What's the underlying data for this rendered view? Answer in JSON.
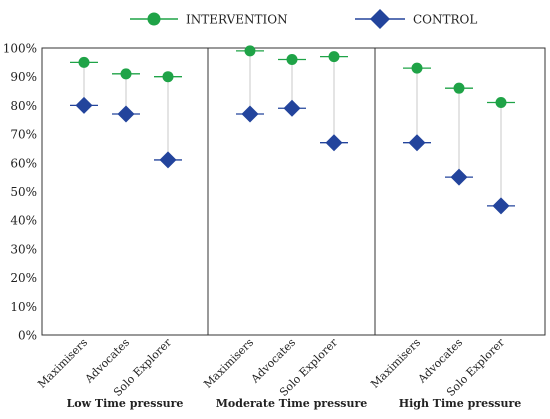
{
  "chart_data": {
    "type": "scatter",
    "subtype": "dumbbell",
    "ylim": [
      0,
      100
    ],
    "yticks": [
      0,
      10,
      20,
      30,
      40,
      50,
      60,
      70,
      80,
      90,
      100
    ],
    "ytick_suffix": "%",
    "legend": {
      "placement": "top-center",
      "entries": [
        {
          "name": "INTERVENTION",
          "marker": "circle",
          "color": "#1fa347"
        },
        {
          "name": "CONTROL",
          "marker": "diamond",
          "color": "#23449c"
        }
      ]
    },
    "panels": [
      {
        "title": "Low Time pressure",
        "categories": [
          "Maximisers",
          "Advocates",
          "Solo Explorer"
        ],
        "series": [
          {
            "name": "INTERVENTION",
            "values": [
              95,
              91,
              90
            ]
          },
          {
            "name": "CONTROL",
            "values": [
              80,
              77,
              61
            ]
          }
        ]
      },
      {
        "title": "Moderate Time pressure",
        "categories": [
          "Maximisers",
          "Advocates",
          "Solo Explorer"
        ],
        "series": [
          {
            "name": "INTERVENTION",
            "values": [
              99,
              96,
              97
            ]
          },
          {
            "name": "CONTROL",
            "values": [
              77,
              79,
              67
            ]
          }
        ]
      },
      {
        "title": "High Time pressure",
        "categories": [
          "Maximisers",
          "Advocates",
          "Solo Explorer"
        ],
        "series": [
          {
            "name": "INTERVENTION",
            "values": [
              93,
              86,
              81
            ]
          },
          {
            "name": "CONTROL",
            "values": [
              67,
              55,
              45
            ]
          }
        ]
      }
    ],
    "colors": {
      "intervention": "#1fa347",
      "control": "#23449c",
      "connector": "#c8c8c8",
      "frame": "#333333"
    }
  }
}
